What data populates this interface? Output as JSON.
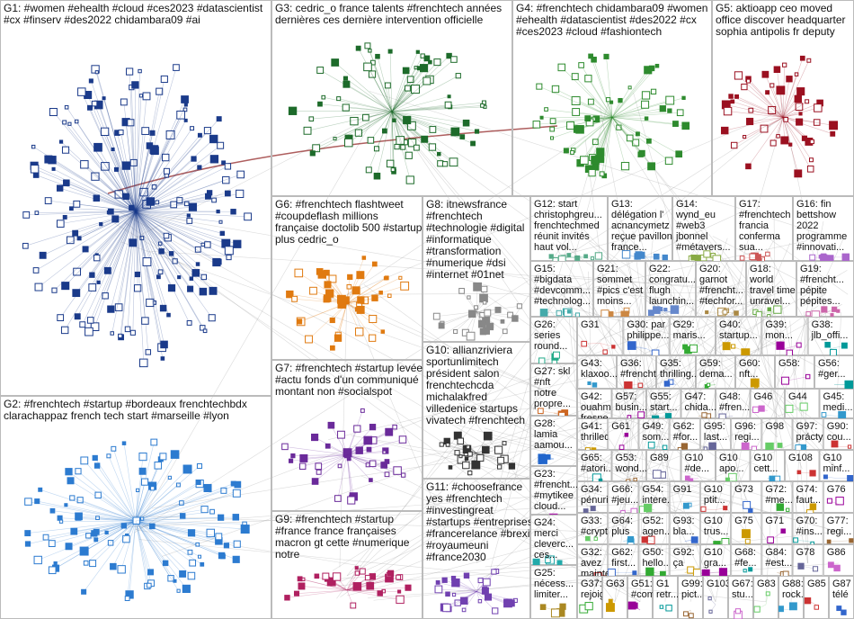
{
  "groups": [
    {
      "lines": [
        "G1: #women #ehealth #cloud #ces2023 #datascientist",
        "#cx #finserv #des2022 chidambara09 #ai"
      ]
    },
    {
      "lines": [
        "G3: cedric_o france talents #frenchtech années",
        "dernières ces dernière intervention officielle"
      ]
    },
    {
      "lines": [
        "G4: #frenchtech chidambara09 #women",
        "#ehealth #datascientist #des2022 #cx",
        "#ces2023 #cloud #fashiontech"
      ]
    },
    {
      "lines": [
        "G5: aktioapp ceo moved",
        "office discover headquarter",
        "sophia antipolis fr deputy"
      ]
    },
    {
      "lines": [
        "G2: #frenchtech #startup #bordeaux frenchtechbdx",
        "clarachappaz french tech start #marseille #lyon"
      ]
    },
    {
      "lines": [
        "G6: #frenchtech flashtweet",
        "#coupdeflash millions",
        "française doctolib 500 #startup",
        "plus cedric_o"
      ]
    },
    {
      "lines": [
        "G8: itnewsfrance",
        "#frenchtech",
        "#technologie #digital",
        "#informatique",
        "#transformation",
        "#numerique #dsi",
        "#internet #01net"
      ]
    },
    {
      "lines": [
        "G12: start",
        "christophgreu...",
        "frenchtechmed",
        "réunit invités",
        "haut vol..."
      ]
    },
    {
      "lines": [
        "G13:",
        "délégation l'",
        "acnancymetz",
        "reçue pavillon",
        "france..."
      ]
    },
    {
      "lines": [
        "G14:",
        "wynd_eu",
        "#web3",
        "jbonnel",
        "#métavers..."
      ]
    },
    {
      "lines": [
        "G17:",
        "#frenchtech",
        "francia",
        "conferma",
        "sua..."
      ]
    },
    {
      "lines": [
        "G16: fin",
        "bettshow",
        "2022",
        "programme",
        "#innovati..."
      ]
    },
    {
      "lines": [
        "G15:",
        "#bigdata",
        "#devcomm...",
        "#technolog..."
      ]
    },
    {
      "lines": [
        "G21:",
        "sommet",
        "#pics c'est",
        "moins..."
      ]
    },
    {
      "lines": [
        "G22:",
        "congratu...",
        "flugh",
        "launchin..."
      ]
    },
    {
      "lines": [
        "G20:",
        "garnot",
        "#frencht...",
        "#techfor..."
      ]
    },
    {
      "lines": [
        "G18:",
        "world",
        "travel time",
        "unravel..."
      ]
    },
    {
      "lines": [
        "G19:",
        "#frencht...",
        "pépite",
        "pépites..."
      ]
    },
    {
      "lines": [
        "G7: #frenchtech #startup levée",
        "#actu fonds d'un communiqué",
        "montant non #socialspot"
      ]
    },
    {
      "lines": [
        "G9: #frenchtech #startup",
        "#france france françaises",
        "macron gt cette #numerique",
        "notre"
      ]
    },
    {
      "lines": [
        "G10: allianzriviera",
        "sportunlimitech",
        "président salon",
        "frenchtechcda",
        "michalakfred",
        "villedenice startups",
        "vivatech #frenchtech"
      ]
    },
    {
      "lines": [
        "G11: #choosefrance",
        "yes #frenchtech",
        "#investingreat",
        "#startups #entreprises",
        "#francerelance #brexit",
        "#royaumeuni",
        "#france2030"
      ]
    },
    {
      "lines": [
        "G26:",
        "series",
        "round..."
      ]
    },
    {
      "lines": [
        "G27: skl",
        "#nft",
        "notre",
        "propre..."
      ]
    },
    {
      "lines": [
        "G28:",
        "lamia",
        "aamou..."
      ]
    },
    {
      "lines": [
        "G23:",
        "#frencht...",
        "#mytikee",
        "cloud...",
        "ces..."
      ]
    },
    {
      "lines": [
        "G24:",
        "merci",
        "cleverc...",
        "ces..."
      ]
    },
    {
      "lines": [
        "G25:",
        "nécess...",
        "limiter..."
      ]
    },
    {
      "lines": [
        "G31"
      ]
    },
    {
      "lines": [
        "G30: par",
        "philippe..."
      ]
    },
    {
      "lines": [
        "G29:",
        "maris..."
      ]
    },
    {
      "lines": [
        "G40:",
        "startup..."
      ]
    },
    {
      "lines": [
        "G39:",
        "mon..."
      ]
    },
    {
      "lines": [
        "G38:",
        "jlb_offi..."
      ]
    },
    {
      "lines": [
        "G43:",
        "klaxoo..."
      ]
    },
    {
      "lines": [
        "G36:",
        "#frencht..."
      ]
    },
    {
      "lines": [
        "G35:",
        "thrilling..."
      ]
    },
    {
      "lines": [
        "G59:",
        "dema..."
      ]
    },
    {
      "lines": [
        "G60:",
        "nft..."
      ]
    },
    {
      "lines": [
        "G58:"
      ]
    },
    {
      "lines": [
        "G56:",
        "#ger..."
      ]
    },
    {
      "lines": [
        "G42:",
        "ouahm...",
        "fresne..."
      ]
    },
    {
      "lines": [
        "G57:",
        "busin..."
      ]
    },
    {
      "lines": [
        "G55:",
        "start..."
      ]
    },
    {
      "lines": [
        "G47:",
        "chida..."
      ]
    },
    {
      "lines": [
        "G48:",
        "#fren..."
      ]
    },
    {
      "lines": [
        "G46"
      ]
    },
    {
      "lines": [
        "G44"
      ]
    },
    {
      "lines": [
        "G45:",
        "medi..."
      ]
    },
    {
      "lines": [
        "G41:",
        "thrilled..."
      ]
    },
    {
      "lines": [
        "G61"
      ]
    },
    {
      "lines": [
        "G49:",
        "som..."
      ]
    },
    {
      "lines": [
        "G62:",
        "#for..."
      ]
    },
    {
      "lines": [
        "G95:",
        "last..."
      ]
    },
    {
      "lines": [
        "G96:",
        "regi..."
      ]
    },
    {
      "lines": [
        "G98"
      ]
    },
    {
      "lines": [
        "G97:",
        "prácty..."
      ]
    },
    {
      "lines": [
        "G90:",
        "cou..."
      ]
    },
    {
      "lines": [
        "G65:",
        "#atori..."
      ]
    },
    {
      "lines": [
        "G53:",
        "wond..."
      ]
    },
    {
      "lines": [
        "G89"
      ]
    },
    {
      "lines": [
        "G10",
        "#de..."
      ]
    },
    {
      "lines": [
        "G10",
        "apo..."
      ]
    },
    {
      "lines": [
        "G10",
        "cett..."
      ]
    },
    {
      "lines": [
        "G108"
      ]
    },
    {
      "lines": [
        "G10",
        "minf..."
      ]
    },
    {
      "lines": [
        "G34:",
        "pénuri..."
      ]
    },
    {
      "lines": [
        "G66:",
        "#jeu..."
      ]
    },
    {
      "lines": [
        "G54:",
        "intere..."
      ]
    },
    {
      "lines": [
        "G91"
      ]
    },
    {
      "lines": [
        "G10",
        "ptit..."
      ]
    },
    {
      "lines": [
        "G73"
      ]
    },
    {
      "lines": [
        "G72:",
        "#me..."
      ]
    },
    {
      "lines": [
        "G74:",
        "faut..."
      ]
    },
    {
      "lines": [
        "G76"
      ]
    },
    {
      "lines": [
        "G33:",
        "#crypt..."
      ]
    },
    {
      "lines": [
        "G64:",
        "plus"
      ]
    },
    {
      "lines": [
        "G52:",
        "agen..."
      ]
    },
    {
      "lines": [
        "G93:",
        "bla..."
      ]
    },
    {
      "lines": [
        "G10",
        "trus..."
      ]
    },
    {
      "lines": [
        "G75"
      ]
    },
    {
      "lines": [
        "G71"
      ]
    },
    {
      "lines": [
        "G70:",
        "#ins..."
      ]
    },
    {
      "lines": [
        "G77:",
        "regi..."
      ]
    },
    {
      "lines": [
        "G32:",
        "avez",
        "mainte..."
      ]
    },
    {
      "lines": [
        "G62:",
        "first..."
      ]
    },
    {
      "lines": [
        "G50:",
        "hello..."
      ]
    },
    {
      "lines": [
        "G92:",
        "ça"
      ]
    },
    {
      "lines": [
        "G10",
        "gra..."
      ]
    },
    {
      "lines": [
        "G68:",
        "#fe..."
      ]
    },
    {
      "lines": [
        "G84:",
        "#est..."
      ]
    },
    {
      "lines": [
        "G78"
      ]
    },
    {
      "lines": [
        "G86"
      ]
    },
    {
      "lines": [
        "G37:",
        "rejoign..."
      ]
    },
    {
      "lines": [
        "G63"
      ]
    },
    {
      "lines": [
        "G51:",
        "#com..."
      ]
    },
    {
      "lines": [
        "G1",
        "retr..."
      ]
    },
    {
      "lines": [
        "G99:",
        "pict..."
      ]
    },
    {
      "lines": [
        "G103"
      ]
    },
    {
      "lines": [
        "G67:",
        "stu..."
      ]
    },
    {
      "lines": [
        "G83"
      ]
    },
    {
      "lines": [
        "G88:",
        "rock..."
      ]
    },
    {
      "lines": [
        "G85"
      ]
    },
    {
      "lines": [
        "G87",
        "télé"
      ]
    }
  ]
}
